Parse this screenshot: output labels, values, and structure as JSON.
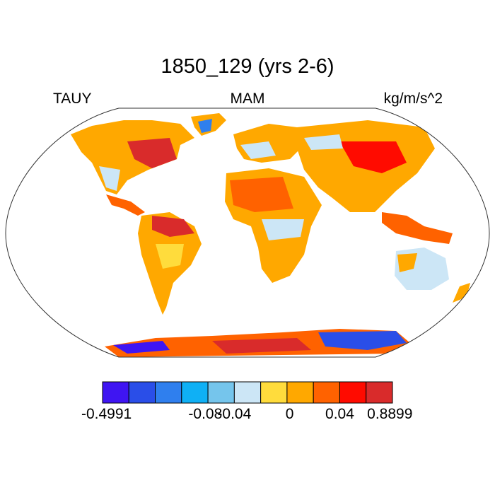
{
  "title": "1850_129 (yrs 2-6)",
  "left_label": "TAUY",
  "center_label": "MAM",
  "right_label": "kg/m/s^2",
  "colorbar": {
    "colors": [
      "#3f15f2",
      "#2a4ee8",
      "#2f7fee",
      "#0fb0f5",
      "#75c5ec",
      "#cce6f6",
      "#ffdc3c",
      "#ffa800",
      "#ff6200",
      "#ff0b00",
      "#d92b2b"
    ],
    "labels": [
      "-0.4991",
      "-0.08",
      "-0.04",
      "0",
      "0.04",
      "0.8899"
    ]
  },
  "map": {
    "projection": "Robinson",
    "background": "#ffffff",
    "ocean_color": "#ffffff"
  }
}
